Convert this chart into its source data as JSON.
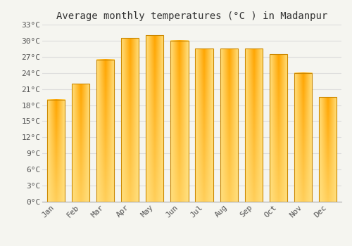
{
  "title": "Average monthly temperatures (°C ) in Madanpur",
  "months": [
    "Jan",
    "Feb",
    "Mar",
    "Apr",
    "May",
    "Jun",
    "Jul",
    "Aug",
    "Sep",
    "Oct",
    "Nov",
    "Dec"
  ],
  "values": [
    19.0,
    22.0,
    26.5,
    30.5,
    31.0,
    30.0,
    28.5,
    28.5,
    28.5,
    27.5,
    24.0,
    19.5
  ],
  "bar_color_top": "#FFA500",
  "bar_color_bottom": "#FFD070",
  "bar_edge_color": "#CC8800",
  "ylim": [
    0,
    33
  ],
  "yticks": [
    0,
    3,
    6,
    9,
    12,
    15,
    18,
    21,
    24,
    27,
    30,
    33
  ],
  "ytick_labels": [
    "0°C",
    "3°C",
    "6°C",
    "9°C",
    "12°C",
    "15°C",
    "18°C",
    "21°C",
    "24°C",
    "27°C",
    "30°C",
    "33°C"
  ],
  "grid_color": "#dddddd",
  "bg_color": "#f5f5f0",
  "plot_bg_color": "#f5f5f0",
  "title_fontsize": 10,
  "tick_fontsize": 8,
  "font_family": "monospace"
}
